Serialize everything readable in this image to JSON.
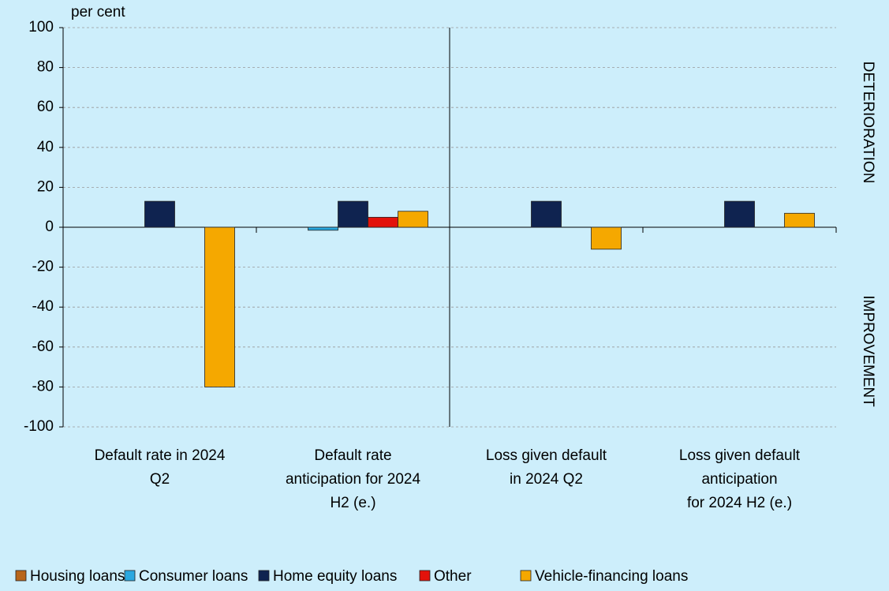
{
  "chart_data": {
    "type": "bar",
    "y_label": "per cent",
    "annotations": [
      "DETERIORATION",
      "IMPROVEMENT"
    ],
    "categories": [
      "Default rate in 2024\nQ2",
      "Default rate\nanticipation for 2024\nH2 (e.)",
      "Loss given default\nin 2024 Q2",
      "Loss given default\nanticipation\nfor 2024 H2 (e.)"
    ],
    "series": [
      {
        "name": "Housing loans",
        "color": "#b8651a",
        "values": [
          0,
          0,
          0,
          0
        ]
      },
      {
        "name": "Consumer loans",
        "color": "#29a8e0",
        "values": [
          0,
          -1.5,
          0,
          0
        ]
      },
      {
        "name": "Home equity loans",
        "color": "#0f2350",
        "values": [
          13,
          13,
          13,
          13
        ]
      },
      {
        "name": "Other",
        "color": "#e3120b",
        "values": [
          0,
          5,
          0,
          0
        ]
      },
      {
        "name": "Vehicle-financing loans",
        "color": "#f5a800",
        "values": [
          -80,
          8,
          -11,
          7
        ]
      }
    ],
    "ylim": [
      -100,
      100
    ],
    "yticks": [
      -100,
      -80,
      -60,
      -40,
      -20,
      0,
      20,
      40,
      60,
      80,
      100
    ],
    "grid": true
  }
}
